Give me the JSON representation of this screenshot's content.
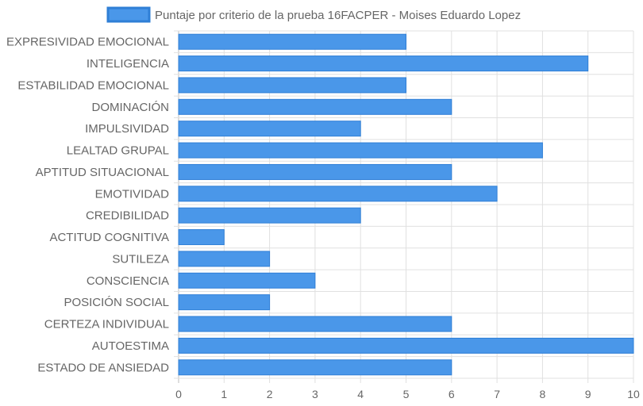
{
  "chart_data": {
    "type": "bar",
    "orientation": "horizontal",
    "categories": [
      "EXPRESIVIDAD EMOCIONAL",
      "INTELIGENCIA",
      "ESTABILIDAD EMOCIONAL",
      "DOMINACIÓN",
      "IMPULSIVIDAD",
      "LEALTAD GRUPAL",
      "APTITUD SITUACIONAL",
      "EMOTIVIDAD",
      "CREDIBILIDAD",
      "ACTITUD COGNITIVA",
      "SUTILEZA",
      "CONSCIENCIA",
      "POSICIÓN SOCIAL",
      "CERTEZA INDIVIDUAL",
      "AUTOESTIMA",
      "ESTADO DE ANSIEDAD"
    ],
    "series": [
      {
        "name": "Puntaje por criterio de la prueba 16FACPER - Moises Eduardo Lopez",
        "values": [
          5,
          9,
          5,
          6,
          4,
          8,
          6,
          7,
          4,
          1,
          2,
          3,
          2,
          6,
          10,
          6
        ]
      }
    ],
    "xlim": [
      0,
      10
    ],
    "xticks": [
      "0",
      "1",
      "2",
      "3",
      "4",
      "5",
      "6",
      "7",
      "8",
      "9",
      "10"
    ],
    "grid": true,
    "legend": "top-center",
    "colors": {
      "bar_fill": "#4a97e9",
      "bar_stroke": "#2f7fd6",
      "grid": "#e0e0e0",
      "text": "#666666"
    }
  }
}
